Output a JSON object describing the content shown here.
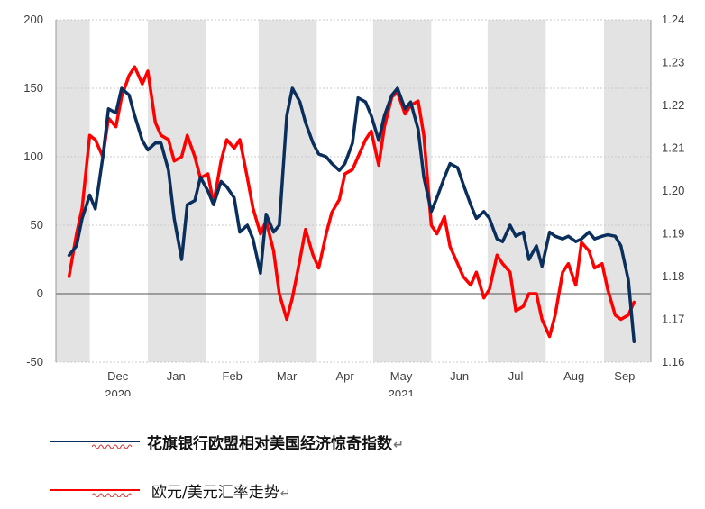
{
  "chart_data": {
    "type": "line",
    "title": "",
    "left_axis": {
      "ylim": [
        -50,
        200
      ],
      "ticks": [
        "200",
        "150",
        "100",
        "50",
        "0",
        "-50"
      ]
    },
    "right_axis": {
      "ylim": [
        1.16,
        1.24
      ],
      "ticks": [
        "1.24",
        "1.23",
        "1.22",
        "1.21",
        "1.20",
        "1.19",
        "1.18",
        "1.17",
        "1.16"
      ]
    },
    "x_month_labels": [
      "Dec",
      "Jan",
      "Feb",
      "Mar",
      "Apr",
      "May",
      "Jun",
      "Jul",
      "Aug",
      "Sep"
    ],
    "x_year_labels": [
      "2020",
      "2021"
    ],
    "shaded_bands": [
      [
        "Nov",
        "Dec"
      ],
      [
        "Jan",
        "Feb"
      ],
      [
        "Mar",
        "Apr"
      ],
      [
        "May",
        "Jun"
      ],
      [
        "Jul",
        "Aug"
      ],
      [
        "Sep",
        "Sep"
      ]
    ],
    "series": [
      {
        "name": "花旗银行欧盟相对美国经济惊奇指数",
        "axis": "left",
        "color": "#0b2f5c",
        "x": [
          "2020-11-20",
          "2020-11-24",
          "2020-11-27",
          "2020-12-01",
          "2020-12-04",
          "2020-12-08",
          "2020-12-11",
          "2020-12-15",
          "2020-12-18",
          "2020-12-22",
          "2020-12-25",
          "2020-12-29",
          "2021-01-01",
          "2021-01-05",
          "2021-01-08",
          "2021-01-12",
          "2021-01-15",
          "2021-01-19",
          "2021-01-22",
          "2021-01-26",
          "2021-01-29",
          "2021-02-02",
          "2021-02-05",
          "2021-02-09",
          "2021-02-12",
          "2021-02-16",
          "2021-02-19",
          "2021-02-23",
          "2021-02-26",
          "2021-03-02",
          "2021-03-05",
          "2021-03-09",
          "2021-03-12",
          "2021-03-16",
          "2021-03-19",
          "2021-03-23",
          "2021-03-26",
          "2021-03-30",
          "2021-04-02",
          "2021-04-06",
          "2021-04-09",
          "2021-04-13",
          "2021-04-16",
          "2021-04-20",
          "2021-04-23",
          "2021-04-27",
          "2021-04-30",
          "2021-05-04",
          "2021-05-07",
          "2021-05-11",
          "2021-05-14",
          "2021-05-18",
          "2021-05-21",
          "2021-05-25",
          "2021-05-28",
          "2021-06-01",
          "2021-06-04",
          "2021-06-08",
          "2021-06-11",
          "2021-06-15",
          "2021-06-18",
          "2021-06-22",
          "2021-06-25",
          "2021-06-29",
          "2021-07-02",
          "2021-07-06",
          "2021-07-09",
          "2021-07-13",
          "2021-07-16",
          "2021-07-20",
          "2021-07-23",
          "2021-07-27",
          "2021-07-30",
          "2021-08-03",
          "2021-08-06",
          "2021-08-10",
          "2021-08-13",
          "2021-08-17",
          "2021-08-20",
          "2021-08-24",
          "2021-08-27",
          "2021-08-31",
          "2021-09-03",
          "2021-09-07",
          "2021-09-10",
          "2021-09-14",
          "2021-09-17"
        ],
        "values": [
          28,
          35,
          55,
          72,
          62,
          100,
          135,
          132,
          150,
          145,
          130,
          112,
          105,
          110,
          110,
          90,
          55,
          25,
          65,
          68,
          85,
          75,
          65,
          82,
          78,
          70,
          45,
          50,
          40,
          15,
          58,
          45,
          50,
          130,
          150,
          140,
          125,
          110,
          102,
          100,
          95,
          90,
          95,
          110,
          143,
          140,
          130,
          112,
          130,
          145,
          150,
          135,
          140,
          120,
          85,
          60,
          70,
          85,
          95,
          92,
          80,
          65,
          55,
          60,
          55,
          40,
          38,
          50,
          42,
          45,
          25,
          35,
          20,
          45,
          42,
          40,
          42,
          38,
          40,
          45,
          40,
          42,
          43,
          42,
          35,
          10,
          -35
        ]
      },
      {
        "name": "欧元/美元汇率走势",
        "axis": "right",
        "color": "#ff0000",
        "x": [
          "2020-11-20",
          "2020-11-24",
          "2020-11-27",
          "2020-12-01",
          "2020-12-04",
          "2020-12-08",
          "2020-12-11",
          "2020-12-15",
          "2020-12-18",
          "2020-12-22",
          "2020-12-25",
          "2020-12-29",
          "2021-01-01",
          "2021-01-05",
          "2021-01-08",
          "2021-01-12",
          "2021-01-15",
          "2021-01-19",
          "2021-01-22",
          "2021-01-26",
          "2021-01-29",
          "2021-02-02",
          "2021-02-05",
          "2021-02-09",
          "2021-02-12",
          "2021-02-16",
          "2021-02-19",
          "2021-02-23",
          "2021-02-26",
          "2021-03-02",
          "2021-03-05",
          "2021-03-09",
          "2021-03-12",
          "2021-03-16",
          "2021-03-19",
          "2021-03-23",
          "2021-03-26",
          "2021-03-30",
          "2021-04-02",
          "2021-04-06",
          "2021-04-09",
          "2021-04-13",
          "2021-04-16",
          "2021-04-20",
          "2021-04-23",
          "2021-04-27",
          "2021-04-30",
          "2021-05-04",
          "2021-05-07",
          "2021-05-11",
          "2021-05-14",
          "2021-05-18",
          "2021-05-21",
          "2021-05-25",
          "2021-05-28",
          "2021-06-01",
          "2021-06-04",
          "2021-06-08",
          "2021-06-11",
          "2021-06-15",
          "2021-06-18",
          "2021-06-22",
          "2021-06-25",
          "2021-06-29",
          "2021-07-02",
          "2021-07-06",
          "2021-07-09",
          "2021-07-13",
          "2021-07-16",
          "2021-07-20",
          "2021-07-23",
          "2021-07-27",
          "2021-07-30",
          "2021-08-03",
          "2021-08-06",
          "2021-08-10",
          "2021-08-13",
          "2021-08-17",
          "2021-08-20",
          "2021-08-24",
          "2021-08-27",
          "2021-08-31",
          "2021-09-03",
          "2021-09-07",
          "2021-09-10",
          "2021-09-14",
          "2021-09-17"
        ],
        "values": [
          1.18,
          1.19,
          1.196,
          1.213,
          1.212,
          1.208,
          1.217,
          1.215,
          1.222,
          1.227,
          1.229,
          1.225,
          1.228,
          1.216,
          1.213,
          1.212,
          1.207,
          1.208,
          1.213,
          1.208,
          1.203,
          1.204,
          1.197,
          1.207,
          1.212,
          1.21,
          1.212,
          1.203,
          1.196,
          1.19,
          1.193,
          1.186,
          1.176,
          1.17,
          1.175,
          1.184,
          1.191,
          1.185,
          1.182,
          1.19,
          1.195,
          1.198,
          1.204,
          1.205,
          1.208,
          1.212,
          1.214,
          1.206,
          1.215,
          1.222,
          1.223,
          1.218,
          1.22,
          1.221,
          1.213,
          1.192,
          1.19,
          1.194,
          1.187,
          1.183,
          1.18,
          1.178,
          1.181,
          1.175,
          1.177,
          1.185,
          1.183,
          1.181,
          1.172,
          1.173,
          1.176,
          1.176,
          1.17,
          1.166,
          1.171,
          1.181,
          1.183,
          1.178,
          1.188,
          1.186,
          1.182,
          1.183,
          1.177,
          1.171,
          1.17,
          1.171,
          1.174
        ]
      }
    ],
    "legend_placement": "bottom-left"
  },
  "legend": {
    "items": [
      {
        "label": "花旗银行欧盟相对美国经济惊奇指数",
        "mark": "↵",
        "color": "#0b2f5c"
      },
      {
        "label": "欧元/美元汇率走势",
        "mark": "↵",
        "color": "#ff0000"
      }
    ]
  }
}
